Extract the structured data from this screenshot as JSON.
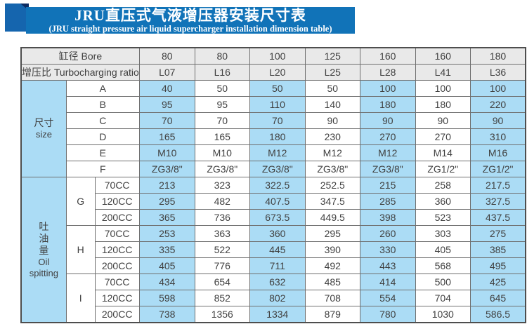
{
  "banner": {
    "title": "JRU直压式气液增压器安装尺寸表",
    "subtitle": "(JRU straight pressure air liquid supercharger installation dimension table)",
    "banner_color": "#1173b8",
    "square_color": "#1565ae",
    "fold_color": "#0c2b63"
  },
  "colors": {
    "stripe_blue": "#abdcf5",
    "header_gray": "#e9e9e9",
    "cell_white": "#ffffff",
    "border": "#6f6f6f",
    "text": "#404040"
  },
  "table": {
    "header_rows": [
      {
        "label": "缸径 Bore",
        "values": [
          "80",
          "80",
          "100",
          "125",
          "160",
          "160",
          "180"
        ]
      },
      {
        "label": "增压比 Turbocharging ratio",
        "values": [
          "L07",
          "L16",
          "L20",
          "L25",
          "L28",
          "L41",
          "L36"
        ]
      }
    ],
    "size_section": {
      "label_zh": "尺寸",
      "label_en": "size",
      "rows": [
        {
          "label": "A",
          "values": [
            "40",
            "50",
            "50",
            "50",
            "100",
            "100",
            "100"
          ]
        },
        {
          "label": "B",
          "values": [
            "95",
            "95",
            "110",
            "140",
            "180",
            "180",
            "220"
          ]
        },
        {
          "label": "C",
          "values": [
            "70",
            "70",
            "70",
            "90",
            "90",
            "90",
            "90"
          ]
        },
        {
          "label": "D",
          "values": [
            "165",
            "165",
            "180",
            "230",
            "270",
            "270",
            "310"
          ]
        },
        {
          "label": "E",
          "values": [
            "M10",
            "M10",
            "M12",
            "M12",
            "M12",
            "M14",
            "M16"
          ]
        },
        {
          "label": "F",
          "values": [
            "ZG3/8\"",
            "ZG3/8\"",
            "ZG3/8\"",
            "ZG3/8\"",
            "ZG3/8\"",
            "ZG1/2\"",
            "ZG1/2\""
          ]
        }
      ]
    },
    "oil_section": {
      "label_zh": "吐油量",
      "label_en": "Oil spitting",
      "groups": [
        {
          "label": "G",
          "rows": [
            {
              "label": "70CC",
              "values": [
                "213",
                "323",
                "322.5",
                "252.5",
                "215",
                "258",
                "217.5"
              ]
            },
            {
              "label": "120CC",
              "values": [
                "295",
                "482",
                "407.5",
                "347.5",
                "285",
                "360",
                "327.5"
              ]
            },
            {
              "label": "200CC",
              "values": [
                "365",
                "736",
                "673.5",
                "449.5",
                "398",
                "523",
                "437.5"
              ]
            }
          ]
        },
        {
          "label": "H",
          "rows": [
            {
              "label": "70CC",
              "values": [
                "253",
                "363",
                "360",
                "295",
                "260",
                "303",
                "275"
              ]
            },
            {
              "label": "120CC",
              "values": [
                "335",
                "522",
                "445",
                "390",
                "330",
                "405",
                "385"
              ]
            },
            {
              "label": "200CC",
              "values": [
                "405",
                "776",
                "711",
                "492",
                "443",
                "568",
                "495"
              ]
            }
          ]
        },
        {
          "label": "I",
          "rows": [
            {
              "label": "70CC",
              "values": [
                "434",
                "654",
                "632",
                "485",
                "414",
                "500",
                "425"
              ]
            },
            {
              "label": "120CC",
              "values": [
                "598",
                "852",
                "802",
                "708",
                "554",
                "704",
                "645"
              ]
            },
            {
              "label": "200CC",
              "values": [
                "738",
                "1356",
                "1334",
                "879",
                "780",
                "1030",
                "586.5"
              ]
            }
          ]
        }
      ]
    }
  }
}
